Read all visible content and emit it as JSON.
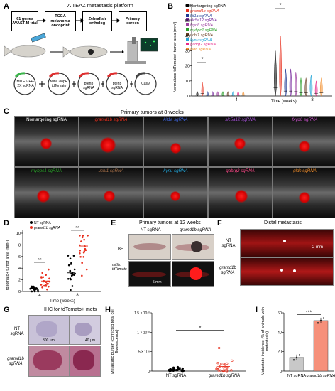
{
  "panelA": {
    "letter": "A",
    "title": "A TEAZ metastasis platform",
    "steps": [
      "61 genes AVAST-M trial",
      "TCGA melanoma oncoprint",
      "Zebrafish ortholog",
      "Primary screen"
    ],
    "plasmids": [
      "MITF GFP-2X sgRNA",
      "MiniCoopR tdTomato",
      "ptenb sgRNA",
      "ptenb sgRNA",
      "Cas9"
    ]
  },
  "panelB": {
    "letter": "B",
    "legend": [
      "Nontargeting sgRNA",
      "gramd1b sgRNA",
      "kif1a sgRNA",
      "slc5a12 sgRNA",
      "fxyd6 sgRNA",
      "mybpc1 sgRNA",
      "uchl1 sgRNA",
      "kynu sgRNA",
      "gabrg2 sgRNA",
      "gldc sgRNA"
    ],
    "colors": [
      "#000000",
      "#e8301e",
      "#1f3a93",
      "#7b2fa0",
      "#9b3fa0",
      "#2aa02a",
      "#6b4226",
      "#22a5d8",
      "#e7298a",
      "#f28e2b"
    ],
    "ylabel": "Normalized tdTomato+ tumor area (mm²)",
    "xlabel": "Time (weeks)",
    "xticks": [
      "4",
      "8"
    ],
    "yticks": [
      "0",
      "10",
      "20",
      "30",
      "40",
      "50",
      "60"
    ],
    "star": "*"
  },
  "panelC": {
    "letter": "C",
    "title": "Primary tumors at 8 weeks",
    "fish": [
      "Nontargeting sgRNA",
      "gramd1b sgRNA",
      "kif1a sgRNA",
      "slc5a12 sgRNA",
      "fxyd6 sgRNA",
      "mybpc1 sgRNA",
      "uchl1 sgRNA",
      "kynu sgRNA",
      "gabrg2 sgRNA",
      "gldc sgRNA"
    ],
    "label_colors": [
      "#ffffff",
      "#e8301e",
      "#3f64d8",
      "#a04fd0",
      "#c04fc0",
      "#2aa02a",
      "#a8714a",
      "#22a5d8",
      "#ff4a8a",
      "#f28e2b"
    ]
  },
  "panelD": {
    "letter": "D",
    "legend": [
      "NT sgRNA",
      "gramd1b sgRNA"
    ],
    "ylabel": "tdTomato+ tumor area (mm²)",
    "xlabel": "Time (weeks)",
    "xticks": [
      "4",
      "8"
    ],
    "yticks": [
      "0",
      "2",
      "4",
      "6",
      "8",
      "10"
    ],
    "sig": [
      "**",
      "**"
    ]
  },
  "panelE": {
    "letter": "E",
    "title": "Primary tumors at 12 weeks",
    "cols": [
      "NT sgRNA",
      "gramd1b sgRNA"
    ],
    "rows": [
      "BF",
      "mitfa: tdTomato"
    ],
    "scale": "5 mm"
  },
  "panelF": {
    "letter": "F",
    "title": "Distal metastasis",
    "rows": [
      "NT sgRNA",
      "gramd1b sgRNA"
    ],
    "scale": "2 mm"
  },
  "panelG": {
    "letter": "G",
    "title": "IHC for tdTomato+ mets",
    "rows": [
      "NT sgRNA",
      "gramd1b sgRNA"
    ],
    "scales": [
      "300 μm",
      "40 μm"
    ]
  },
  "panelH": {
    "letter": "H",
    "ylabel": "Metastatic burden (corrected total cell fluorescence)",
    "yticks": [
      "0",
      "5 × 10⁹",
      "1 × 10¹⁰",
      "1.5 × 10¹⁰"
    ],
    "xticks": [
      "NT sgRNA",
      "gramd1b sgRNA"
    ],
    "sig": "*"
  },
  "panelI": {
    "letter": "I",
    "ylabel": "Metastatic incidence (% of animals with metastasis)",
    "yticks": [
      "0",
      "20",
      "40",
      "60"
    ],
    "xticks": [
      "NT sgRNA",
      "gramd1b sgRNA"
    ],
    "sig": "***",
    "values": [
      14,
      52
    ]
  },
  "chart_data": [
    {
      "type": "scatter",
      "title": "",
      "xlabel": "Time (weeks)",
      "ylabel": "tdTomato+ tumor area (mm²)",
      "categories": [
        "4",
        "8"
      ],
      "series": [
        {
          "name": "NT sgRNA",
          "means": [
            0.5,
            3.2
          ]
        },
        {
          "name": "gramd1b sgRNA",
          "means": [
            1.8,
            7.8
          ]
        }
      ],
      "ylim": [
        0,
        10
      ]
    },
    {
      "type": "bar",
      "title": "",
      "xlabel": "",
      "ylabel": "Metastatic incidence (% of animals with metastasis)",
      "categories": [
        "NT sgRNA",
        "gramd1b sgRNA"
      ],
      "values": [
        14,
        52
      ],
      "ylim": [
        0,
        60
      ]
    }
  ]
}
